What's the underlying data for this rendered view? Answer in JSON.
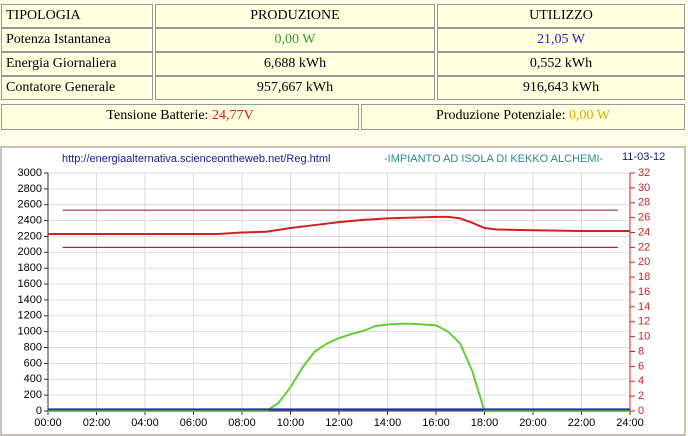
{
  "table": {
    "header": [
      "TIPOLOGIA",
      "PRODUZIONE",
      "UTILIZZO"
    ],
    "rows": [
      [
        "Potenza Istantanea",
        "0,00 W",
        "21,05 W"
      ],
      [
        "Energia Giornaliera",
        "6,688 kWh",
        "0,552 kWh"
      ],
      [
        "Contatore Generale",
        "957,667 kWh",
        "916,643 kWh"
      ]
    ]
  },
  "summary": [
    {
      "label": "Tensione Batterie: ",
      "value": "24,77V"
    },
    {
      "label": "Produzione Potenziale: ",
      "value": "0,00 W"
    }
  ],
  "chart_data": {
    "type": "line",
    "url": "http://energiaalternativa.scienceontheweb.net/Reg.html",
    "title": "-IMPIANTO AD ISOLA DI KEKKO ALCHEMI-",
    "date": "11-03-12",
    "xlim": [
      0,
      24
    ],
    "xticks": [
      {
        "value": 0,
        "label": "00:00"
      },
      {
        "value": 2,
        "label": "02:00"
      },
      {
        "value": 4,
        "label": "04:00"
      },
      {
        "value": 6,
        "label": "06:00"
      },
      {
        "value": 8,
        "label": "08:00"
      },
      {
        "value": 10,
        "label": "10:00"
      },
      {
        "value": 12,
        "label": "12:00"
      },
      {
        "value": 14,
        "label": "14:00"
      },
      {
        "value": 16,
        "label": "16:00"
      },
      {
        "value": 18,
        "label": "18:00"
      },
      {
        "value": 20,
        "label": "20:00"
      },
      {
        "value": 22,
        "label": "22:00"
      },
      {
        "value": 24,
        "label": "24:00"
      }
    ],
    "ylim": [
      0,
      3000
    ],
    "yticks": [
      0,
      200,
      400,
      600,
      800,
      1000,
      1200,
      1400,
      1600,
      1800,
      2000,
      2200,
      2400,
      2600,
      2800,
      3000
    ],
    "y2lim": [
      0,
      32
    ],
    "y2ticks": [
      0,
      2,
      4,
      6,
      8,
      10,
      12,
      14,
      16,
      18,
      20,
      22,
      24,
      26,
      28,
      30,
      32
    ],
    "grid": true,
    "series": [
      {
        "color": "#66cc33",
        "x": [
          0,
          9,
          9.5,
          10,
          10.5,
          11,
          11.5,
          12,
          12.5,
          13,
          13.5,
          14,
          14.5,
          15,
          15.5,
          16,
          16.5,
          17,
          17.5,
          17.8,
          18,
          24
        ],
        "values": [
          0,
          0,
          100,
          300,
          550,
          750,
          850,
          920,
          970,
          1010,
          1070,
          1090,
          1100,
          1100,
          1090,
          1080,
          1000,
          850,
          500,
          200,
          0,
          0
        ]
      },
      {
        "color": "#2233bb",
        "x": [
          0,
          24
        ],
        "values": [
          20,
          20
        ]
      },
      {
        "color": "#cc2222",
        "axis": "y2",
        "x": [
          0,
          7,
          8,
          9,
          10,
          11,
          12,
          13,
          14,
          15,
          16,
          16.5,
          17,
          17.5,
          18,
          18.5,
          20,
          22,
          24
        ],
        "values": [
          23.8,
          23.8,
          24,
          24.1,
          24.6,
          25,
          25.4,
          25.7,
          25.9,
          26,
          26.1,
          26.1,
          25.9,
          25.3,
          24.6,
          24.4,
          24.3,
          24.2,
          24.2
        ],
        "axis_note": null
      }
    ],
    "hlines": [
      {
        "value": 27,
        "from": 0.6,
        "to": 23.5,
        "color": "#993333"
      },
      {
        "value": 22,
        "from": 0.6,
        "to": 23.5,
        "color": "#993333"
      }
    ]
  }
}
